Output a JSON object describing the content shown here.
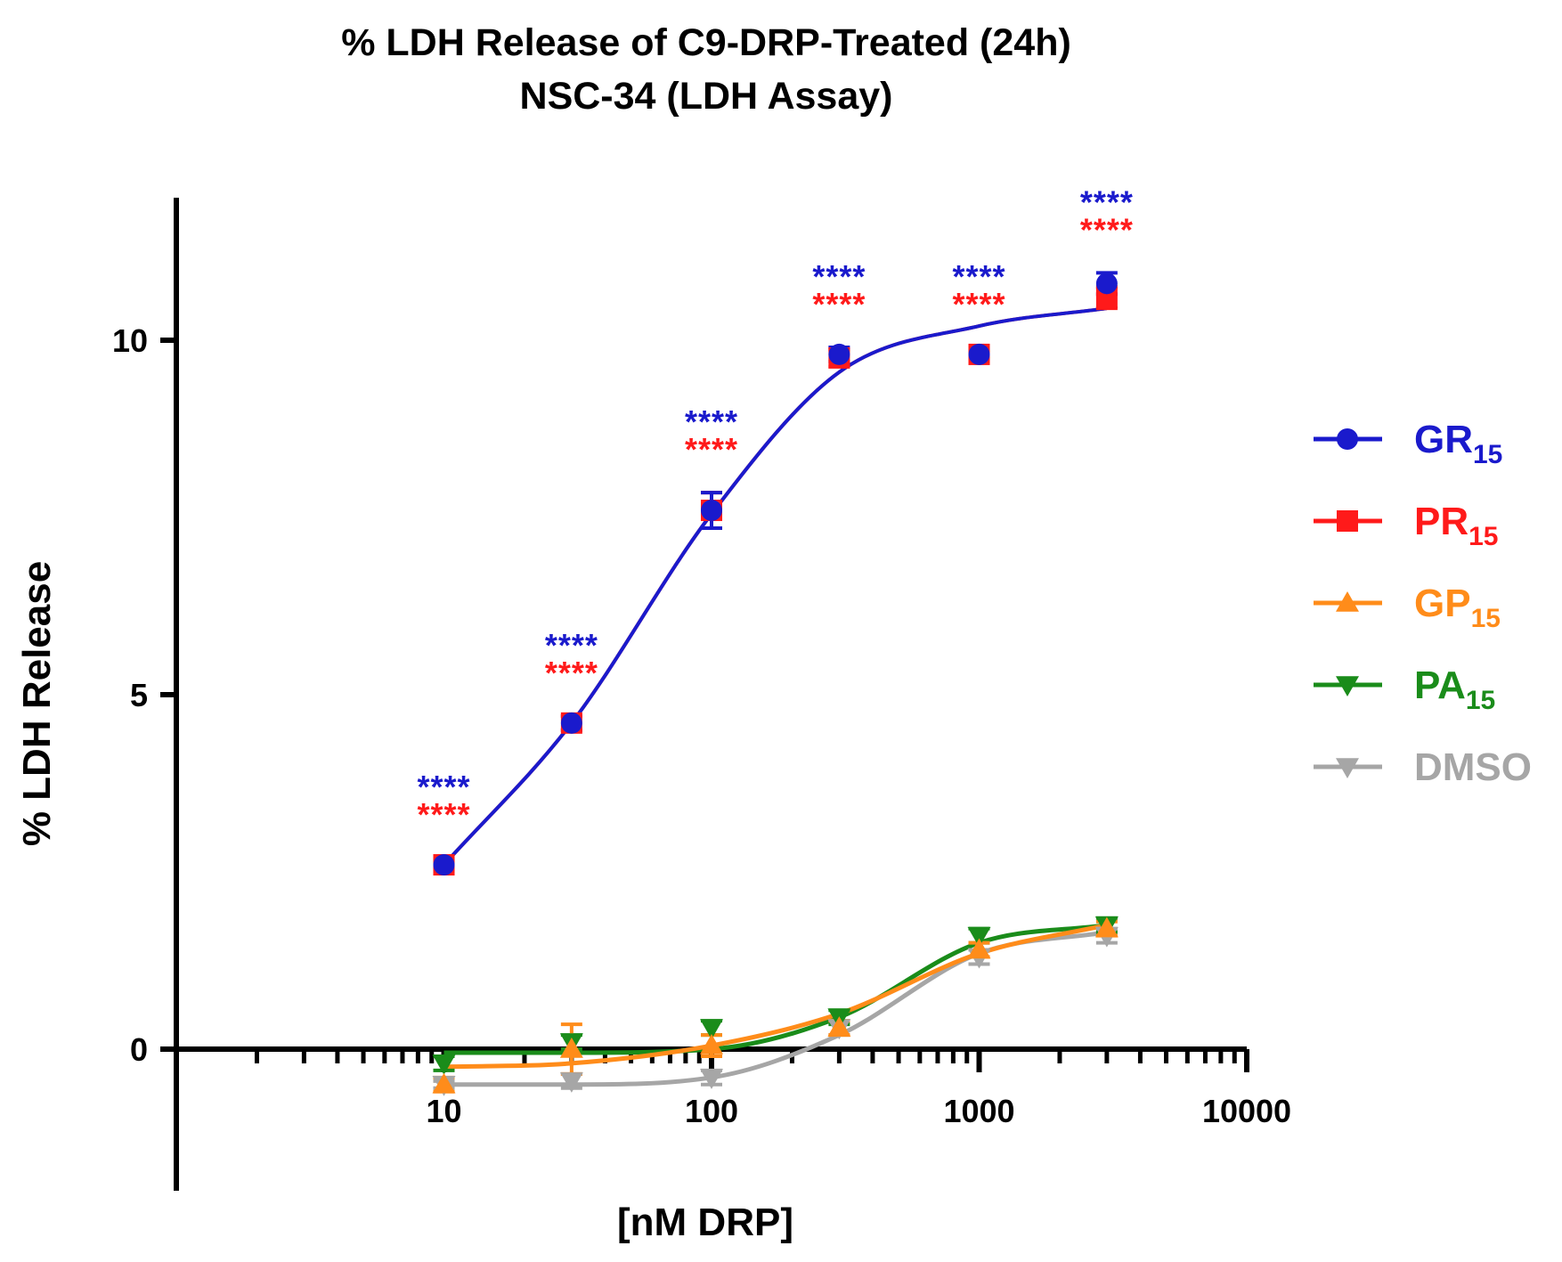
{
  "chart_data": {
    "type": "line",
    "title": [
      "% LDH Release of C9-DRP-Treated (24h)",
      "NSC-34 (LDH Assay)"
    ],
    "xlabel": "[nM DRP]",
    "ylabel": "% LDH Release",
    "xscale": "log",
    "xlim": [
      1,
      10000
    ],
    "ylim": [
      -2,
      12
    ],
    "xticks": [
      10,
      100,
      1000,
      10000
    ],
    "xtick_labels": [
      "10",
      "100",
      "1000",
      "10000"
    ],
    "yticks": [
      0,
      5,
      10
    ],
    "ytick_labels": [
      "0",
      "5",
      "10"
    ],
    "legend_position": "right",
    "x": [
      10,
      30,
      100,
      300,
      1000,
      3000
    ],
    "series": [
      {
        "name": "GR",
        "subscript": "15",
        "color": "#1a1acc",
        "marker": "circle",
        "values": [
          2.6,
          4.6,
          7.6,
          9.8,
          9.8,
          10.8
        ],
        "errors": [
          0.1,
          0.1,
          0.25,
          0.1,
          0.1,
          0.15
        ],
        "fit": [
          2.6,
          4.6,
          7.55,
          9.55,
          10.2,
          10.45
        ]
      },
      {
        "name": "PR",
        "subscript": "15",
        "color": "#ff1a1a",
        "marker": "square",
        "values": [
          2.6,
          4.6,
          7.6,
          9.75,
          9.8,
          10.6
        ],
        "errors": [
          0.1,
          0.1,
          0.25,
          0.12,
          0.1,
          0.15
        ],
        "fit": [
          2.6,
          4.6,
          7.55,
          9.55,
          10.2,
          10.45
        ]
      },
      {
        "name": "GP",
        "subscript": "15",
        "color": "#ff8c1a",
        "marker": "triangle-up",
        "values": [
          -0.5,
          0,
          0.05,
          0.3,
          1.4,
          1.7
        ],
        "errors": [
          0.1,
          0.35,
          0.15,
          0.1,
          0.1,
          0.1
        ],
        "fit": [
          -0.25,
          -0.2,
          0.05,
          0.5,
          1.35,
          1.75
        ]
      },
      {
        "name": "PA",
        "subscript": "15",
        "color": "#1a8c1a",
        "marker": "triangle-down",
        "values": [
          -0.2,
          0.1,
          0.3,
          0.45,
          1.6,
          1.75
        ],
        "errors": [
          0.1,
          0.1,
          0.1,
          0.1,
          0.1,
          0.1
        ],
        "fit": [
          -0.05,
          -0.05,
          0.0,
          0.45,
          1.5,
          1.75
        ]
      },
      {
        "name": "DMSO",
        "subscript": "",
        "color": "#a6a6a6",
        "marker": "triangle-down",
        "values": [
          -0.5,
          -0.45,
          -0.4,
          0.3,
          1.3,
          1.6
        ],
        "errors": [
          0.05,
          0.1,
          0.1,
          0.1,
          0.1,
          0.1
        ],
        "fit": [
          -0.5,
          -0.5,
          -0.4,
          0.2,
          1.35,
          1.65
        ]
      }
    ],
    "annotations": [
      {
        "x": 10,
        "text": "****",
        "color": "#1a1acc",
        "row": "upper"
      },
      {
        "x": 10,
        "text": "****",
        "color": "#ff1a1a",
        "row": "lower"
      },
      {
        "x": 30,
        "text": "****",
        "color": "#1a1acc",
        "row": "upper"
      },
      {
        "x": 30,
        "text": "****",
        "color": "#ff1a1a",
        "row": "lower"
      },
      {
        "x": 100,
        "text": "****",
        "color": "#1a1acc",
        "row": "upper"
      },
      {
        "x": 100,
        "text": "****",
        "color": "#ff1a1a",
        "row": "lower"
      },
      {
        "x": 300,
        "text": "****",
        "color": "#1a1acc",
        "row": "upper"
      },
      {
        "x": 300,
        "text": "****",
        "color": "#ff1a1a",
        "row": "lower"
      },
      {
        "x": 1000,
        "text": "****",
        "color": "#1a1acc",
        "row": "upper"
      },
      {
        "x": 1000,
        "text": "****",
        "color": "#ff1a1a",
        "row": "lower"
      },
      {
        "x": 3000,
        "text": "****",
        "color": "#1a1acc",
        "row": "upper"
      },
      {
        "x": 3000,
        "text": "****",
        "color": "#ff1a1a",
        "row": "lower"
      }
    ]
  }
}
